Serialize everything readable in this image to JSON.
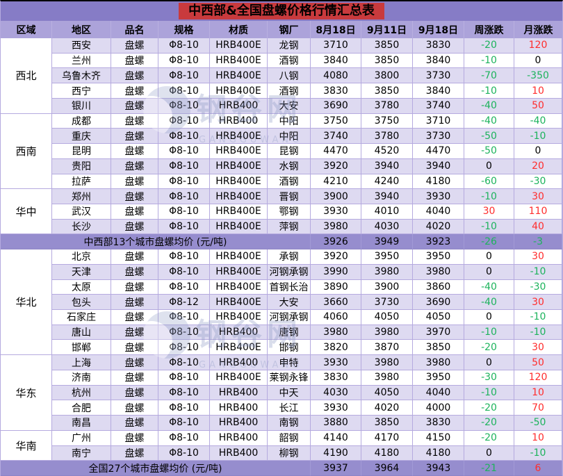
{
  "title": "中西部&全国盘螺价格行情汇总表",
  "columns": [
    "区域",
    "地区",
    "品名",
    "规格",
    "材质",
    "钢厂",
    "8月18日",
    "9月11日",
    "9月18日",
    "周涨跌",
    "月涨跌"
  ],
  "blocks": [
    {
      "type": "region",
      "name": "西北",
      "rows": [
        {
          "city": "西安",
          "product": "盘螺",
          "spec": "Φ8-10",
          "material": "HRB400E",
          "mill": "龙钢",
          "prices": [
            3710,
            3850,
            3830
          ],
          "week": -20,
          "month": 120
        },
        {
          "city": "兰州",
          "product": "盘螺",
          "spec": "Φ8-10",
          "material": "HRB400E",
          "mill": "酒钢",
          "prices": [
            3840,
            3850,
            3840
          ],
          "week": -10,
          "month": 0
        },
        {
          "city": "乌鲁木齐",
          "product": "盘螺",
          "spec": "Φ8-10",
          "material": "HRB400E",
          "mill": "八钢",
          "prices": [
            4080,
            3800,
            3730
          ],
          "week": -70,
          "month": -350
        },
        {
          "city": "西宁",
          "product": "盘螺",
          "spec": "Φ8-10",
          "material": "HRB400E",
          "mill": "酒钢",
          "prices": [
            3830,
            3850,
            3840
          ],
          "week": -10,
          "month": 10
        },
        {
          "city": "银川",
          "product": "盘螺",
          "spec": "Φ8-10",
          "material": "HRB400",
          "mill": "大安",
          "prices": [
            3690,
            3780,
            3740
          ],
          "week": -40,
          "month": 50
        }
      ]
    },
    {
      "type": "region",
      "name": "西南",
      "rows": [
        {
          "city": "成都",
          "product": "盘螺",
          "spec": "Φ8-10",
          "material": "HRB400",
          "mill": "中阳",
          "prices": [
            3750,
            3750,
            3710
          ],
          "week": -40,
          "month": -40
        },
        {
          "city": "重庆",
          "product": "盘螺",
          "spec": "Φ8-10",
          "material": "HRB400E",
          "mill": "中阳",
          "prices": [
            3740,
            3780,
            3730
          ],
          "week": -50,
          "month": -10
        },
        {
          "city": "昆明",
          "product": "盘螺",
          "spec": "Φ8-10",
          "material": "HRB400E",
          "mill": "昆钢",
          "prices": [
            4470,
            4520,
            4470
          ],
          "week": -50,
          "month": 0
        },
        {
          "city": "贵阳",
          "product": "盘螺",
          "spec": "Φ8-10",
          "material": "HRB400E",
          "mill": "水钢",
          "prices": [
            3920,
            3940,
            3940
          ],
          "week": 0,
          "month": 20
        },
        {
          "city": "拉萨",
          "product": "盘螺",
          "spec": "Φ8-10",
          "material": "HRB400E",
          "mill": "酒钢",
          "prices": [
            4210,
            4240,
            4180
          ],
          "week": -60,
          "month": -30
        }
      ]
    },
    {
      "type": "region",
      "name": "华中",
      "rows": [
        {
          "city": "郑州",
          "product": "盘螺",
          "spec": "Φ8-10",
          "material": "HRB400E",
          "mill": "晋钢",
          "prices": [
            3900,
            3940,
            3930
          ],
          "week": -10,
          "month": 30
        },
        {
          "city": "武汉",
          "product": "盘螺",
          "spec": "Φ8-10",
          "material": "HRB400E",
          "mill": "鄂钢",
          "prices": [
            3930,
            4010,
            4040
          ],
          "week": 30,
          "month": 110
        },
        {
          "city": "长沙",
          "product": "盘螺",
          "spec": "Φ8-10",
          "material": "HRB400E",
          "mill": "萍钢",
          "prices": [
            3980,
            4030,
            4020
          ],
          "week": -10,
          "month": 40
        }
      ]
    },
    {
      "type": "summary",
      "label": "中西部13个城市盘螺均价 (元/吨)",
      "prices": [
        3926,
        3949,
        3923
      ],
      "week": -26,
      "month": -3
    },
    {
      "type": "region",
      "name": "华北",
      "rows": [
        {
          "city": "北京",
          "product": "盘螺",
          "spec": "Φ8-10",
          "material": "HRB400E",
          "mill": "承钢",
          "prices": [
            3920,
            3950,
            3950
          ],
          "week": 0,
          "month": 30
        },
        {
          "city": "天津",
          "product": "盘螺",
          "spec": "Φ8-10",
          "material": "HRB400E",
          "mill": "河钢承钢",
          "prices": [
            3990,
            3980,
            3980
          ],
          "week": 0,
          "month": -10
        },
        {
          "city": "太原",
          "product": "盘螺",
          "spec": "Φ8-10",
          "material": "HRB400E",
          "mill": "首钢长治",
          "prices": [
            3890,
            3900,
            3860
          ],
          "week": -40,
          "month": -30
        },
        {
          "city": "包头",
          "product": "盘螺",
          "spec": "Φ8-12",
          "material": "HRB400E",
          "mill": "大安",
          "prices": [
            3660,
            3730,
            3690
          ],
          "week": -40,
          "month": 30
        },
        {
          "city": "石家庄",
          "product": "盘螺",
          "spec": "Φ8-10",
          "material": "HRB400E",
          "mill": "河钢承钢",
          "prices": [
            4060,
            4050,
            4050
          ],
          "week": 0,
          "month": -10
        },
        {
          "city": "唐山",
          "product": "盘螺",
          "spec": "Φ8-10",
          "material": "HRB400",
          "mill": "唐钢",
          "prices": [
            3980,
            3980,
            3970
          ],
          "week": -10,
          "month": -10
        },
        {
          "city": "邯郸",
          "product": "盘螺",
          "spec": "Φ8-10",
          "material": "HRB400E",
          "mill": "邯钢",
          "prices": [
            3820,
            3870,
            3850
          ],
          "week": -20,
          "month": 30
        }
      ]
    },
    {
      "type": "region",
      "name": "华东",
      "rows": [
        {
          "city": "上海",
          "product": "盘螺",
          "spec": "Φ8-10",
          "material": "HRB400",
          "mill": "申特",
          "prices": [
            3930,
            3980,
            3980
          ],
          "week": 0,
          "month": 50
        },
        {
          "city": "济南",
          "product": "盘螺",
          "spec": "Φ8-10",
          "material": "HRB400E",
          "mill": "莱钢永锋",
          "prices": [
            3830,
            3980,
            3950
          ],
          "week": -30,
          "month": 120
        },
        {
          "city": "杭州",
          "product": "盘螺",
          "spec": "Φ8-10",
          "material": "HRB400",
          "mill": "中天",
          "prices": [
            4030,
            4050,
            4040
          ],
          "week": -10,
          "month": 10
        },
        {
          "city": "合肥",
          "product": "盘螺",
          "spec": "Φ8-10",
          "material": "HRB400",
          "mill": "长江",
          "prices": [
            3930,
            4020,
            4000
          ],
          "week": -20,
          "month": 70
        },
        {
          "city": "南昌",
          "product": "盘螺",
          "spec": "Φ8-10",
          "material": "HRB400",
          "mill": "南钢",
          "prices": [
            3880,
            3850,
            3830
          ],
          "week": -20,
          "month": -50
        }
      ]
    },
    {
      "type": "region",
      "name": "华南",
      "rows": [
        {
          "city": "广州",
          "product": "盘螺",
          "spec": "Φ8-10",
          "material": "HRB400",
          "mill": "韶钢",
          "prices": [
            4140,
            4170,
            4150
          ],
          "week": -20,
          "month": 10
        },
        {
          "city": "南宁",
          "product": "盘螺",
          "spec": "Φ8-10",
          "material": "HRB400",
          "mill": "柳钢",
          "prices": [
            4190,
            4180,
            4180
          ],
          "week": 0,
          "month": -10
        }
      ]
    },
    {
      "type": "summary",
      "label": "全国27个城市盘螺均价 (元/吨)",
      "prices": [
        3937,
        3964,
        3943
      ],
      "week": -21,
      "month": 6
    }
  ],
  "watermark": {
    "text": "钢谷网",
    "subtext": "GANGGUWANG"
  },
  "colors": {
    "up": "#FF2D2D",
    "down": "#1DB35C",
    "zero": "#000000",
    "title_bar": "#C93A3D",
    "title_row_bg": "#867CC6",
    "header_bg": "#ACA3DA",
    "stripe_bg": "#DEDAF1",
    "summary_bg": "#968DCE",
    "grid_line": "#B5AADF"
  }
}
